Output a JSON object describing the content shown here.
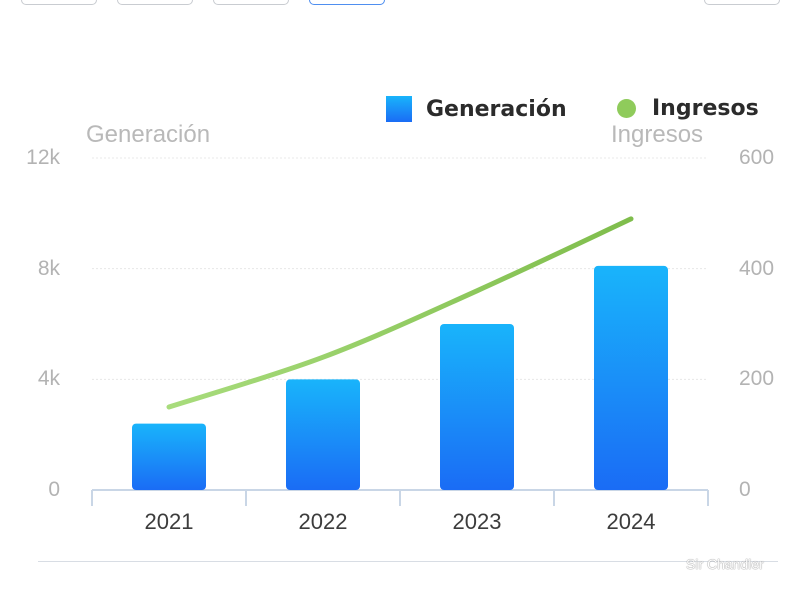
{
  "legend": {
    "series1": "Generación",
    "series2": "Ingresos"
  },
  "colors": {
    "bar_top": "#19b4fb",
    "bar_bottom": "#1a6cf5",
    "line": "#8fcb5b"
  },
  "watermark": "Sir Chandler",
  "chart_data": {
    "type": "bar",
    "categories": [
      "2021",
      "2022",
      "2023",
      "2024"
    ],
    "series": [
      {
        "name": "Generación",
        "type": "bar",
        "axis": "left",
        "values": [
          2400,
          4000,
          6000,
          8100
        ]
      },
      {
        "name": "Ingresos",
        "type": "line",
        "axis": "right",
        "values": [
          150,
          240,
          360,
          490
        ]
      }
    ],
    "y_left": {
      "label": "Generación",
      "ylim": [
        0,
        12000
      ],
      "ticks": [
        "0",
        "4k",
        "8k",
        "12k"
      ],
      "tick_values": [
        0,
        4000,
        8000,
        12000
      ]
    },
    "y_right": {
      "label": "Ingresos",
      "ylim": [
        0,
        600
      ],
      "ticks": [
        "0",
        "200",
        "400",
        "600"
      ],
      "tick_values": [
        0,
        200,
        400,
        600
      ]
    },
    "grid": true,
    "legend_position": "top-right"
  }
}
